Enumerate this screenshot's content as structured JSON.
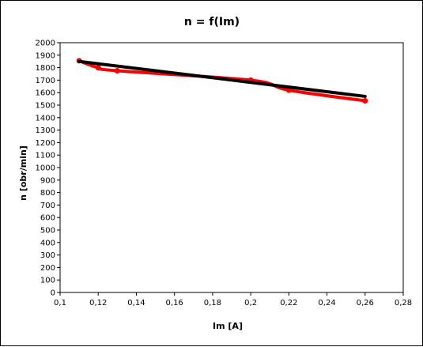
{
  "chart_data": {
    "type": "line",
    "title": "n = f(Im)",
    "xlabel": "Im [A]",
    "ylabel": "n [obr/min]",
    "xlim": [
      0.1,
      0.28
    ],
    "ylim": [
      0,
      2000
    ],
    "x_ticks": [
      "0,1",
      "0,12",
      "0,14",
      "0,16",
      "0,18",
      "0,2",
      "0,22",
      "0,24",
      "0,26",
      "0,28"
    ],
    "y_ticks": [
      "0",
      "100",
      "200",
      "300",
      "400",
      "500",
      "600",
      "700",
      "800",
      "900",
      "1000",
      "1100",
      "1200",
      "1300",
      "1400",
      "1500",
      "1600",
      "1700",
      "1800",
      "1900",
      "2000"
    ],
    "grid": false,
    "legend": "none",
    "series": [
      {
        "color": "#ff0000",
        "style": "smoothed line with markers",
        "points": [
          [
            0.11,
            1855
          ],
          [
            0.12,
            1800
          ],
          [
            0.13,
            1775
          ],
          [
            0.2,
            1700
          ],
          [
            0.22,
            1620
          ],
          [
            0.26,
            1535
          ]
        ]
      },
      {
        "color": "#000000",
        "style": "linear trend line",
        "points": [
          [
            0.11,
            1850
          ],
          [
            0.26,
            1570
          ]
        ]
      }
    ]
  }
}
